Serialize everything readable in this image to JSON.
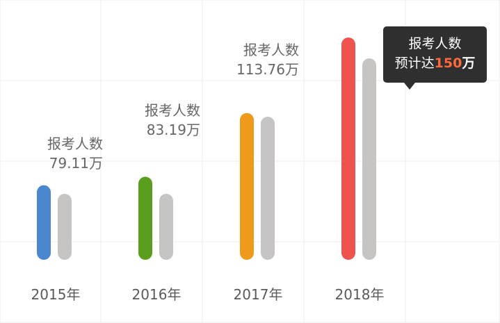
{
  "chart_data": {
    "type": "bar",
    "categories": [
      "2015年",
      "2016年",
      "2017年",
      "2018年"
    ],
    "series": [
      {
        "values": [
          79.11,
          83.19,
          113.76,
          150
        ]
      },
      {
        "values": [
          75,
          75,
          112,
          140
        ]
      }
    ],
    "ylim": [
      50,
      150
    ],
    "grid": true,
    "bar_colors": [
      "#4a87cf",
      "#5a9e1d",
      "#ef9a1d",
      "#ef5350"
    ],
    "secondary_color": "#c6c5c3",
    "annotations": [
      {
        "line1": "报考人数",
        "line2": "79.11万"
      },
      {
        "line1": "报考人数",
        "line2": "83.19万"
      },
      {
        "line1": "报考人数",
        "line2": "113.76万"
      }
    ],
    "tooltip": {
      "line1": "报考人数",
      "line2_prefix": "预计达",
      "line2_value": "150",
      "line2_unit": "万"
    }
  }
}
